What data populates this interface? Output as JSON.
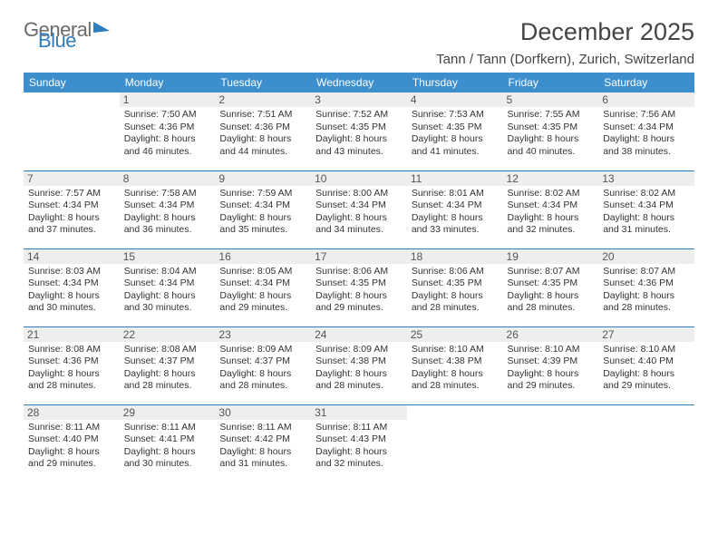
{
  "logo": {
    "part1": "General",
    "part2": "Blue"
  },
  "title": "December 2025",
  "location": "Tann / Tann (Dorfkern), Zurich, Switzerland",
  "day_headers": [
    "Sunday",
    "Monday",
    "Tuesday",
    "Wednesday",
    "Thursday",
    "Friday",
    "Saturday"
  ],
  "colors": {
    "header_bg": "#3c8ecd",
    "header_fg": "#ffffff",
    "border": "#2f7dc0",
    "daynum_bg": "#eeeeee",
    "text": "#333333",
    "background": "#ffffff"
  },
  "typography": {
    "title_fontsize_pt": 20,
    "location_fontsize_pt": 11,
    "dayheader_fontsize_pt": 9,
    "cell_fontsize_pt": 8
  },
  "layout": {
    "columns": 7,
    "rows": 5,
    "offset_blank_cells": 1
  },
  "days": [
    {
      "n": 1,
      "sunrise": "7:50 AM",
      "sunset": "4:36 PM",
      "day_h": 8,
      "day_m": 46
    },
    {
      "n": 2,
      "sunrise": "7:51 AM",
      "sunset": "4:36 PM",
      "day_h": 8,
      "day_m": 44
    },
    {
      "n": 3,
      "sunrise": "7:52 AM",
      "sunset": "4:35 PM",
      "day_h": 8,
      "day_m": 43
    },
    {
      "n": 4,
      "sunrise": "7:53 AM",
      "sunset": "4:35 PM",
      "day_h": 8,
      "day_m": 41
    },
    {
      "n": 5,
      "sunrise": "7:55 AM",
      "sunset": "4:35 PM",
      "day_h": 8,
      "day_m": 40
    },
    {
      "n": 6,
      "sunrise": "7:56 AM",
      "sunset": "4:34 PM",
      "day_h": 8,
      "day_m": 38
    },
    {
      "n": 7,
      "sunrise": "7:57 AM",
      "sunset": "4:34 PM",
      "day_h": 8,
      "day_m": 37
    },
    {
      "n": 8,
      "sunrise": "7:58 AM",
      "sunset": "4:34 PM",
      "day_h": 8,
      "day_m": 36
    },
    {
      "n": 9,
      "sunrise": "7:59 AM",
      "sunset": "4:34 PM",
      "day_h": 8,
      "day_m": 35
    },
    {
      "n": 10,
      "sunrise": "8:00 AM",
      "sunset": "4:34 PM",
      "day_h": 8,
      "day_m": 34
    },
    {
      "n": 11,
      "sunrise": "8:01 AM",
      "sunset": "4:34 PM",
      "day_h": 8,
      "day_m": 33
    },
    {
      "n": 12,
      "sunrise": "8:02 AM",
      "sunset": "4:34 PM",
      "day_h": 8,
      "day_m": 32
    },
    {
      "n": 13,
      "sunrise": "8:02 AM",
      "sunset": "4:34 PM",
      "day_h": 8,
      "day_m": 31
    },
    {
      "n": 14,
      "sunrise": "8:03 AM",
      "sunset": "4:34 PM",
      "day_h": 8,
      "day_m": 30
    },
    {
      "n": 15,
      "sunrise": "8:04 AM",
      "sunset": "4:34 PM",
      "day_h": 8,
      "day_m": 30
    },
    {
      "n": 16,
      "sunrise": "8:05 AM",
      "sunset": "4:34 PM",
      "day_h": 8,
      "day_m": 29
    },
    {
      "n": 17,
      "sunrise": "8:06 AM",
      "sunset": "4:35 PM",
      "day_h": 8,
      "day_m": 29
    },
    {
      "n": 18,
      "sunrise": "8:06 AM",
      "sunset": "4:35 PM",
      "day_h": 8,
      "day_m": 28
    },
    {
      "n": 19,
      "sunrise": "8:07 AM",
      "sunset": "4:35 PM",
      "day_h": 8,
      "day_m": 28
    },
    {
      "n": 20,
      "sunrise": "8:07 AM",
      "sunset": "4:36 PM",
      "day_h": 8,
      "day_m": 28
    },
    {
      "n": 21,
      "sunrise": "8:08 AM",
      "sunset": "4:36 PM",
      "day_h": 8,
      "day_m": 28
    },
    {
      "n": 22,
      "sunrise": "8:08 AM",
      "sunset": "4:37 PM",
      "day_h": 8,
      "day_m": 28
    },
    {
      "n": 23,
      "sunrise": "8:09 AM",
      "sunset": "4:37 PM",
      "day_h": 8,
      "day_m": 28
    },
    {
      "n": 24,
      "sunrise": "8:09 AM",
      "sunset": "4:38 PM",
      "day_h": 8,
      "day_m": 28
    },
    {
      "n": 25,
      "sunrise": "8:10 AM",
      "sunset": "4:38 PM",
      "day_h": 8,
      "day_m": 28
    },
    {
      "n": 26,
      "sunrise": "8:10 AM",
      "sunset": "4:39 PM",
      "day_h": 8,
      "day_m": 29
    },
    {
      "n": 27,
      "sunrise": "8:10 AM",
      "sunset": "4:40 PM",
      "day_h": 8,
      "day_m": 29
    },
    {
      "n": 28,
      "sunrise": "8:11 AM",
      "sunset": "4:40 PM",
      "day_h": 8,
      "day_m": 29
    },
    {
      "n": 29,
      "sunrise": "8:11 AM",
      "sunset": "4:41 PM",
      "day_h": 8,
      "day_m": 30
    },
    {
      "n": 30,
      "sunrise": "8:11 AM",
      "sunset": "4:42 PM",
      "day_h": 8,
      "day_m": 31
    },
    {
      "n": 31,
      "sunrise": "8:11 AM",
      "sunset": "4:43 PM",
      "day_h": 8,
      "day_m": 32
    }
  ],
  "labels": {
    "sunrise": "Sunrise:",
    "sunset": "Sunset:",
    "daylight": "Daylight:",
    "hours": "hours",
    "and": "and",
    "minutes": "minutes."
  }
}
